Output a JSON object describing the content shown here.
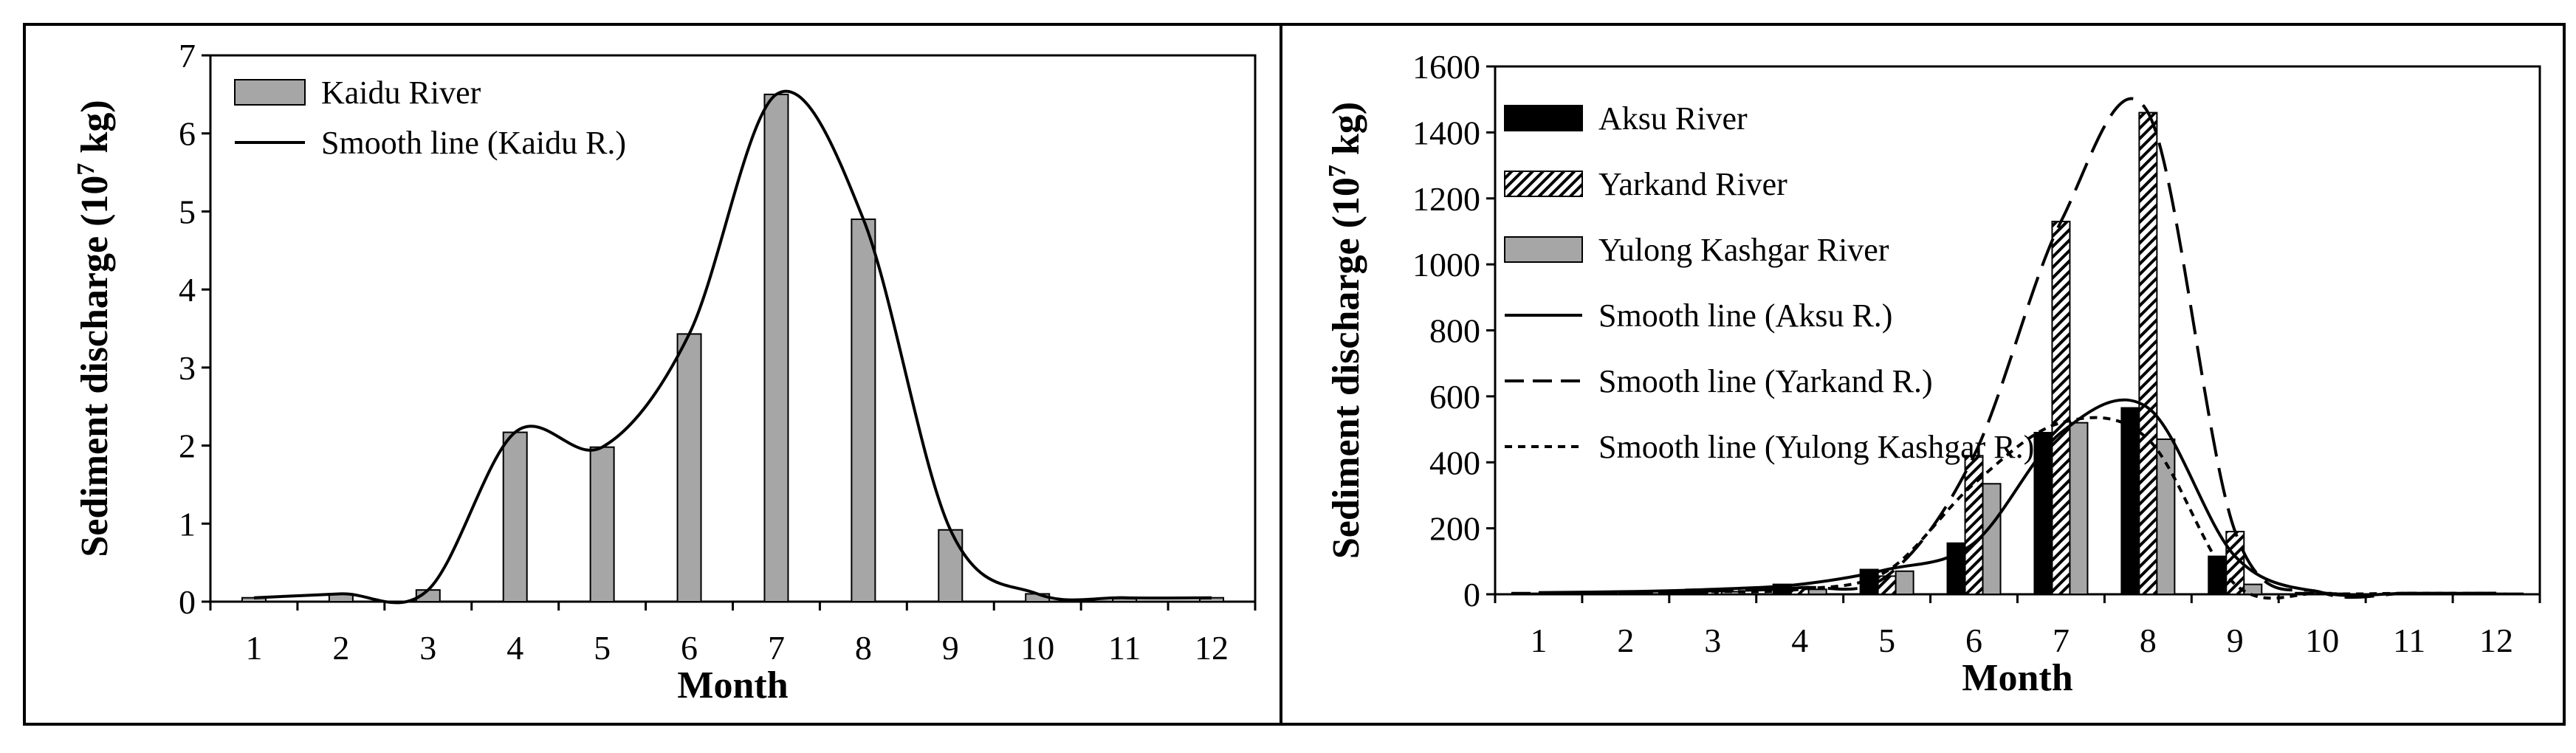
{
  "chart_data": [
    {
      "type": "bar",
      "ylabel": "Sediment discharge (10",
      "ylabel_sup": "7",
      "ylabel_end": " kg)",
      "xlabel": "Month",
      "categories": [
        "1",
        "2",
        "3",
        "4",
        "5",
        "6",
        "7",
        "8",
        "9",
        "10",
        "11",
        "12"
      ],
      "ylim": [
        0,
        7
      ],
      "yticks": [
        "0",
        "1",
        "2",
        "3",
        "4",
        "5",
        "6",
        "7"
      ],
      "series": [
        {
          "name": "Kaidu River",
          "kind": "bar",
          "color": "#a6a6a6",
          "values": [
            0.05,
            0.1,
            0.15,
            2.17,
            1.98,
            3.43,
            6.5,
            4.9,
            0.92,
            0.1,
            0.05,
            0.05
          ]
        },
        {
          "name": "Smooth line (Kaidu R.)",
          "kind": "line",
          "dash": "solid",
          "values": [
            0.05,
            0.1,
            0.15,
            2.17,
            1.98,
            3.43,
            6.5,
            4.9,
            0.92,
            0.1,
            0.05,
            0.05
          ]
        }
      ]
    },
    {
      "type": "bar",
      "ylabel": "Sediment discharge (10",
      "ylabel_sup": "7",
      "ylabel_end": " kg)",
      "xlabel": "Month",
      "categories": [
        "1",
        "2",
        "3",
        "4",
        "5",
        "6",
        "7",
        "8",
        "9",
        "10",
        "11",
        "12"
      ],
      "ylim": [
        0,
        1600
      ],
      "yticks": [
        "0",
        "200",
        "400",
        "600",
        "800",
        "1000",
        "1200",
        "1400",
        "1600"
      ],
      "series": [
        {
          "name": "Aksu River",
          "kind": "bar",
          "pattern": "solid-black",
          "values": [
            5,
            8,
            15,
            30,
            75,
            155,
            490,
            565,
            115,
            5,
            3,
            3
          ]
        },
        {
          "name": "Yarkand River",
          "kind": "bar",
          "pattern": "hatch",
          "values": [
            3,
            5,
            10,
            20,
            55,
            420,
            1130,
            1460,
            190,
            5,
            3,
            3
          ]
        },
        {
          "name": "Yulong Kashgar River",
          "kind": "bar",
          "pattern": "solid-gray",
          "values": [
            3,
            5,
            8,
            15,
            70,
            335,
            520,
            470,
            30,
            3,
            3,
            3
          ]
        },
        {
          "name": "Smooth line (Aksu R.)",
          "kind": "line",
          "dash": "solid",
          "values": [
            5,
            8,
            15,
            30,
            75,
            155,
            490,
            565,
            115,
            5,
            3,
            3
          ]
        },
        {
          "name": "Smooth line (Yarkand R.)",
          "kind": "line",
          "dash": "long",
          "values": [
            3,
            5,
            10,
            20,
            55,
            420,
            1130,
            1460,
            190,
            5,
            3,
            3
          ]
        },
        {
          "name": "Smooth line (Yulong Kashgar R.)",
          "kind": "line",
          "dash": "short",
          "values": [
            3,
            5,
            8,
            15,
            70,
            335,
            520,
            470,
            30,
            3,
            3,
            3
          ]
        }
      ]
    }
  ]
}
